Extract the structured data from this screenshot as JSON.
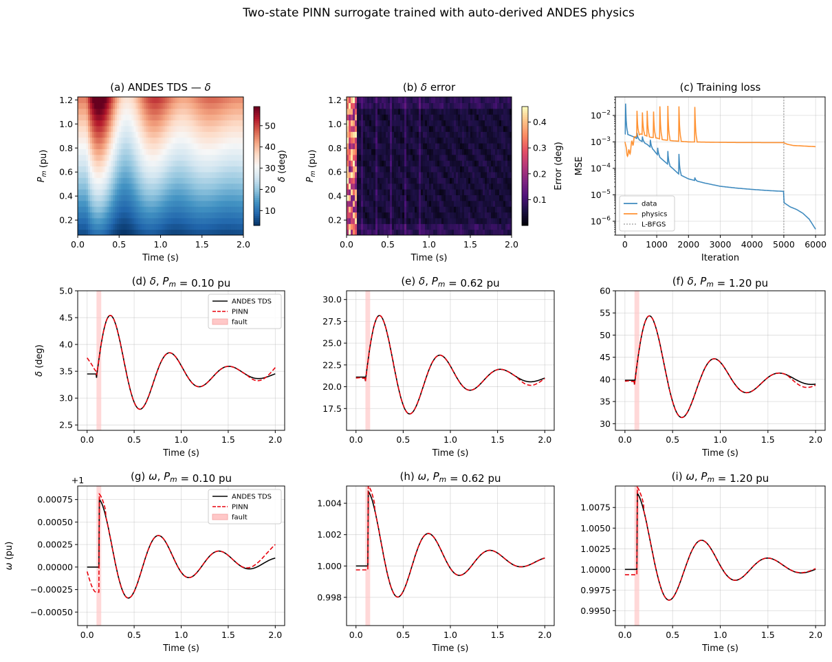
{
  "figure": {
    "title": "Two-state PINN surrogate trained with auto-derived ANDES physics"
  },
  "colors": {
    "andes": "#000000",
    "pinn": "#e8000b",
    "fault": "#ffc8c8",
    "data_loss": "#1f77b4",
    "physics_loss": "#ff7f0e",
    "lbfgs": "#aaaaaa"
  },
  "chart_data": [
    {
      "id": "a",
      "type": "heatmap",
      "title": "(a) ANDES TDS — δ",
      "xlabel": "Time (s)",
      "ylabel": "P_m (pu)",
      "xlim": [
        0,
        2.0
      ],
      "ylim": [
        0.075,
        1.225
      ],
      "xticks": [
        "0.0",
        "0.5",
        "1.0",
        "1.5",
        "2.0"
      ],
      "yticks": [
        "0.2",
        "0.4",
        "0.6",
        "0.8",
        "1.0",
        "1.2"
      ],
      "colormap": "RdBu_r",
      "colorbar": {
        "label": "δ (deg)",
        "range": [
          3,
          59
        ],
        "ticks": [
          "10",
          "20",
          "30",
          "40",
          "50"
        ]
      }
    },
    {
      "id": "b",
      "type": "heatmap",
      "title": "(b) δ error",
      "xlabel": "Time (s)",
      "ylabel": "P_m (pu)",
      "xlim": [
        0,
        2.0
      ],
      "ylim": [
        0.075,
        1.225
      ],
      "xticks": [
        "0.0",
        "0.5",
        "1.0",
        "1.5",
        "2.0"
      ],
      "yticks": [
        "0.2",
        "0.4",
        "0.6",
        "0.8",
        "1.0",
        "1.2"
      ],
      "colormap": "magma",
      "colorbar": {
        "label": "Error (deg)",
        "range": [
          0,
          0.46
        ],
        "ticks": [
          "0.1",
          "0.2",
          "0.3",
          "0.4"
        ]
      }
    },
    {
      "id": "c",
      "type": "line",
      "yscale": "log",
      "title": "(c) Training loss",
      "xlabel": "Iteration",
      "ylabel": "MSE",
      "xlim": [
        -300,
        6300
      ],
      "ylim": [
        3e-07,
        0.05
      ],
      "xticks": [
        "0",
        "1000",
        "2000",
        "3000",
        "4000",
        "5000",
        "6000"
      ],
      "lbfgs_start": 5000,
      "legend": {
        "position": "lower-left",
        "entries": [
          "data",
          "physics",
          "L-BFGS"
        ]
      },
      "series": [
        {
          "name": "data",
          "x": [
            0,
            100,
            300,
            500,
            700,
            900,
            1000,
            1100,
            1300,
            1500,
            1700,
            2000,
            2500,
            3000,
            3500,
            4000,
            4500,
            4990,
            5010,
            5200,
            5400,
            5600,
            5800,
            6000
          ],
          "y": [
            0.002,
            0.0019,
            0.0015,
            0.0011,
            0.0008,
            0.0005,
            0.00035,
            0.00026,
            0.00016,
            0.0001,
            6e-05,
            4e-05,
            2.8e-05,
            2.1e-05,
            1.8e-05,
            1.6e-05,
            1.45e-05,
            1.35e-05,
            5e-06,
            3.5e-06,
            2.8e-06,
            2e-06,
            1.2e-06,
            5e-07
          ],
          "spikes": [
            [
              20,
              0.028
            ],
            [
              380,
              0.0022
            ],
            [
              550,
              0.0016
            ],
            [
              800,
              0.0012
            ],
            [
              1030,
              0.0006
            ],
            [
              1350,
              0.00045
            ],
            [
              1700,
              0.00035
            ],
            [
              2200,
              4.5e-05
            ]
          ]
        },
        {
          "name": "physics",
          "x": [
            0,
            100,
            300,
            500,
            800,
            1000,
            1200,
            1500,
            2000,
            2500,
            3000,
            3500,
            4000,
            4500,
            4990,
            5100,
            5300,
            5600,
            6000
          ],
          "y": [
            0.001,
            0.0003,
            0.0015,
            0.002,
            0.0015,
            0.0014,
            0.0012,
            0.0011,
            0.001,
            0.00098,
            0.00096,
            0.00095,
            0.00095,
            0.00094,
            0.00094,
            0.00082,
            0.00073,
            0.0007,
            0.00066
          ],
          "spikes": [
            [
              380,
              0.015
            ],
            [
              550,
              0.013
            ],
            [
              700,
              0.015
            ],
            [
              900,
              0.014
            ],
            [
              1100,
              0.022
            ],
            [
              1350,
              0.023
            ],
            [
              1700,
              0.022
            ],
            [
              2200,
              0.021
            ]
          ]
        }
      ]
    },
    {
      "id": "d",
      "type": "line",
      "title": "(d) δ,  P_m = 0.10 pu",
      "xlabel": "Time (s)",
      "ylabel": "δ (deg)",
      "xlim": [
        -0.1,
        2.1
      ],
      "ylim": [
        2.4,
        5.0
      ],
      "xticks": [
        "0.0",
        "0.5",
        "1.0",
        "1.5",
        "2.0"
      ],
      "yticks": [
        "2.5",
        "3.0",
        "3.5",
        "4.0",
        "4.5",
        "5.0"
      ],
      "fault": [
        0.1,
        0.15
      ],
      "legend": {
        "position": "top-right",
        "entries": [
          "ANDES TDS",
          "PINN",
          "fault"
        ]
      },
      "response": {
        "base": 3.45,
        "amp1": 1.4,
        "period": 0.63,
        "tau": 0.62,
        "shift": -0.05
      },
      "pinn_edges": {
        "start": 3.75,
        "end": 3.57
      }
    },
    {
      "id": "e",
      "type": "line",
      "title": "(e) δ,  P_m = 0.62 pu",
      "xlabel": "Time (s)",
      "ylabel": "",
      "xlim": [
        -0.1,
        2.1
      ],
      "ylim": [
        15.0,
        31.0
      ],
      "xticks": [
        "0.0",
        "0.5",
        "1.0",
        "1.5",
        "2.0"
      ],
      "yticks": [
        "17.5",
        "20.0",
        "22.5",
        "25.0",
        "27.5",
        "30.0"
      ],
      "fault": [
        0.1,
        0.15
      ],
      "response": {
        "base": 21.1,
        "amp1": 9.1,
        "period": 0.64,
        "tau": 0.62,
        "shift": -0.05
      },
      "pinn_edges": {
        "start": 21.0,
        "end": 20.95
      }
    },
    {
      "id": "f",
      "type": "line",
      "title": "(f) δ,  P_m = 1.20 pu",
      "xlabel": "Time (s)",
      "ylabel": "",
      "xlim": [
        -0.1,
        2.1
      ],
      "ylim": [
        28.5,
        60.0
      ],
      "xticks": [
        "0.0",
        "0.5",
        "1.0",
        "1.5",
        "2.0"
      ],
      "yticks": [
        "30",
        "35",
        "40",
        "45",
        "50",
        "55",
        "60"
      ],
      "fault": [
        0.1,
        0.15
      ],
      "response": {
        "base": 39.8,
        "amp1": 19.0,
        "period": 0.68,
        "tau": 0.62,
        "shift": -0.05
      },
      "pinn_edges": {
        "start": 39.6,
        "end": 38.7
      }
    },
    {
      "id": "g",
      "type": "line",
      "title": "(g) ω,  P_m = 0.10 pu",
      "xlabel": "Time (s)",
      "ylabel": "ω (pu)",
      "offset_label": "+1",
      "xlim": [
        -0.1,
        2.1
      ],
      "ylim": [
        -0.00065,
        0.0009
      ],
      "xticks": [
        "0.0",
        "0.5",
        "1.0",
        "1.5",
        "2.0"
      ],
      "yticks": [
        "−0.00050",
        "−0.00025",
        "0.00000",
        "0.00025",
        "0.00050",
        "0.00075"
      ],
      "ytick_values": [
        -0.0005,
        -0.00025,
        0,
        0.00025,
        0.0005,
        0.00075
      ],
      "fault": [
        0.1,
        0.15
      ],
      "legend": {
        "position": "top-right",
        "entries": [
          "ANDES TDS",
          "PINN",
          "fault"
        ]
      },
      "omega": {
        "base": 0.0,
        "peak": 0.00075,
        "trough": -0.00055,
        "period": 0.63,
        "tau": 0.75,
        "end": 5e-05
      },
      "pinn_edges": {
        "start": -5e-05,
        "dip": -0.00028,
        "end": 0.00025
      }
    },
    {
      "id": "h",
      "type": "line",
      "title": "(h) ω,  P_m = 0.62 pu",
      "xlabel": "Time (s)",
      "ylabel": "",
      "xlim": [
        -0.1,
        2.1
      ],
      "ylim": [
        0.9962,
        1.0051
      ],
      "xticks": [
        "0.0",
        "0.5",
        "1.0",
        "1.5",
        "2.0"
      ],
      "yticks": [
        "0.998",
        "1.000",
        "1.002",
        "1.004"
      ],
      "ytick_values": [
        0.998,
        1.0,
        1.002,
        1.004
      ],
      "fault": [
        0.1,
        0.15
      ],
      "omega": {
        "base": 1.0,
        "peak": 0.00475,
        "trough": -0.0033,
        "period": 0.64,
        "tau": 0.7,
        "end": 0.0003
      },
      "pinn_edges": {
        "start": 0.99975,
        "dip": 0.99975,
        "end": 1.0005
      }
    },
    {
      "id": "i",
      "type": "line",
      "title": "(i) ω,  P_m = 1.20 pu",
      "xlabel": "Time (s)",
      "ylabel": "",
      "xlim": [
        -0.1,
        2.1
      ],
      "ylim": [
        0.9932,
        1.0101
      ],
      "xticks": [
        "0.0",
        "0.5",
        "1.0",
        "1.5",
        "2.0"
      ],
      "yticks": [
        "0.9950",
        "0.9975",
        "1.0000",
        "1.0025",
        "1.0050",
        "1.0075"
      ],
      "ytick_values": [
        0.995,
        0.9975,
        1.0,
        1.0025,
        1.005,
        1.0075
      ],
      "fault": [
        0.1,
        0.15
      ],
      "omega": {
        "base": 1.0,
        "peak": 0.0092,
        "trough": -0.0061,
        "period": 0.68,
        "tau": 0.7,
        "end": 0.0001
      },
      "pinn_edges": {
        "start": 0.99935,
        "dip": 0.99935,
        "end": 1.0001
      }
    }
  ]
}
